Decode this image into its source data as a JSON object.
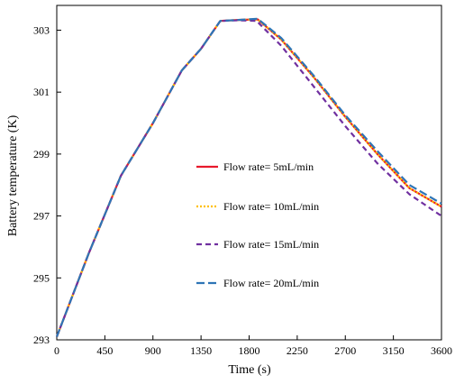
{
  "chart_data": {
    "type": "line",
    "title": "",
    "xlabel": "Time (s)",
    "ylabel": "Battery temperature (K)",
    "xlim": [
      0,
      3600
    ],
    "ylim": [
      293,
      303.8
    ],
    "xticks": [
      0,
      450,
      900,
      1350,
      1800,
      2250,
      2700,
      3150,
      3600
    ],
    "yticks": [
      293,
      295,
      297,
      299,
      301,
      303
    ],
    "grid": false,
    "legend_position": "center-left",
    "series": [
      {
        "name": "Flow rate= 5mL/min",
        "color": "#e8192c",
        "dash": "solid",
        "x": [
          0,
          300,
          600,
          900,
          1170,
          1350,
          1530,
          1700,
          1880,
          2100,
          2400,
          2700,
          3000,
          3300,
          3600
        ],
        "y": [
          293.1,
          295.8,
          298.3,
          300.0,
          301.7,
          302.4,
          303.3,
          303.33,
          303.35,
          302.7,
          301.5,
          300.2,
          299.0,
          297.9,
          297.3
        ]
      },
      {
        "name": "Flow rate= 10mL/min",
        "color": "#ffc000",
        "dash": "dot",
        "x": [
          0,
          300,
          600,
          900,
          1170,
          1350,
          1530,
          1700,
          1880,
          2100,
          2400,
          2700,
          3000,
          3300,
          3600
        ],
        "y": [
          293.1,
          295.8,
          298.3,
          300.0,
          301.7,
          302.4,
          303.3,
          303.33,
          303.35,
          302.7,
          301.5,
          300.2,
          299.0,
          297.9,
          297.3
        ]
      },
      {
        "name": "Flow rate= 15mL/min",
        "color": "#7030a0",
        "dash": "dash",
        "x": [
          0,
          300,
          600,
          900,
          1170,
          1350,
          1530,
          1700,
          1870,
          2100,
          2400,
          2700,
          3000,
          3300,
          3600
        ],
        "y": [
          293.1,
          295.8,
          298.3,
          300.0,
          301.7,
          302.4,
          303.3,
          303.32,
          303.3,
          302.5,
          301.2,
          299.9,
          298.7,
          297.7,
          297.0
        ]
      },
      {
        "name": "Flow rate= 20mL/min",
        "color": "#2e75b6",
        "dash": "longdash",
        "x": [
          0,
          300,
          600,
          900,
          1170,
          1350,
          1530,
          1700,
          1880,
          2100,
          2400,
          2700,
          3000,
          3300,
          3600
        ],
        "y": [
          293.1,
          295.8,
          298.3,
          300.0,
          301.7,
          302.4,
          303.3,
          303.33,
          303.37,
          302.75,
          301.55,
          300.25,
          299.1,
          298.0,
          297.4
        ]
      }
    ]
  }
}
